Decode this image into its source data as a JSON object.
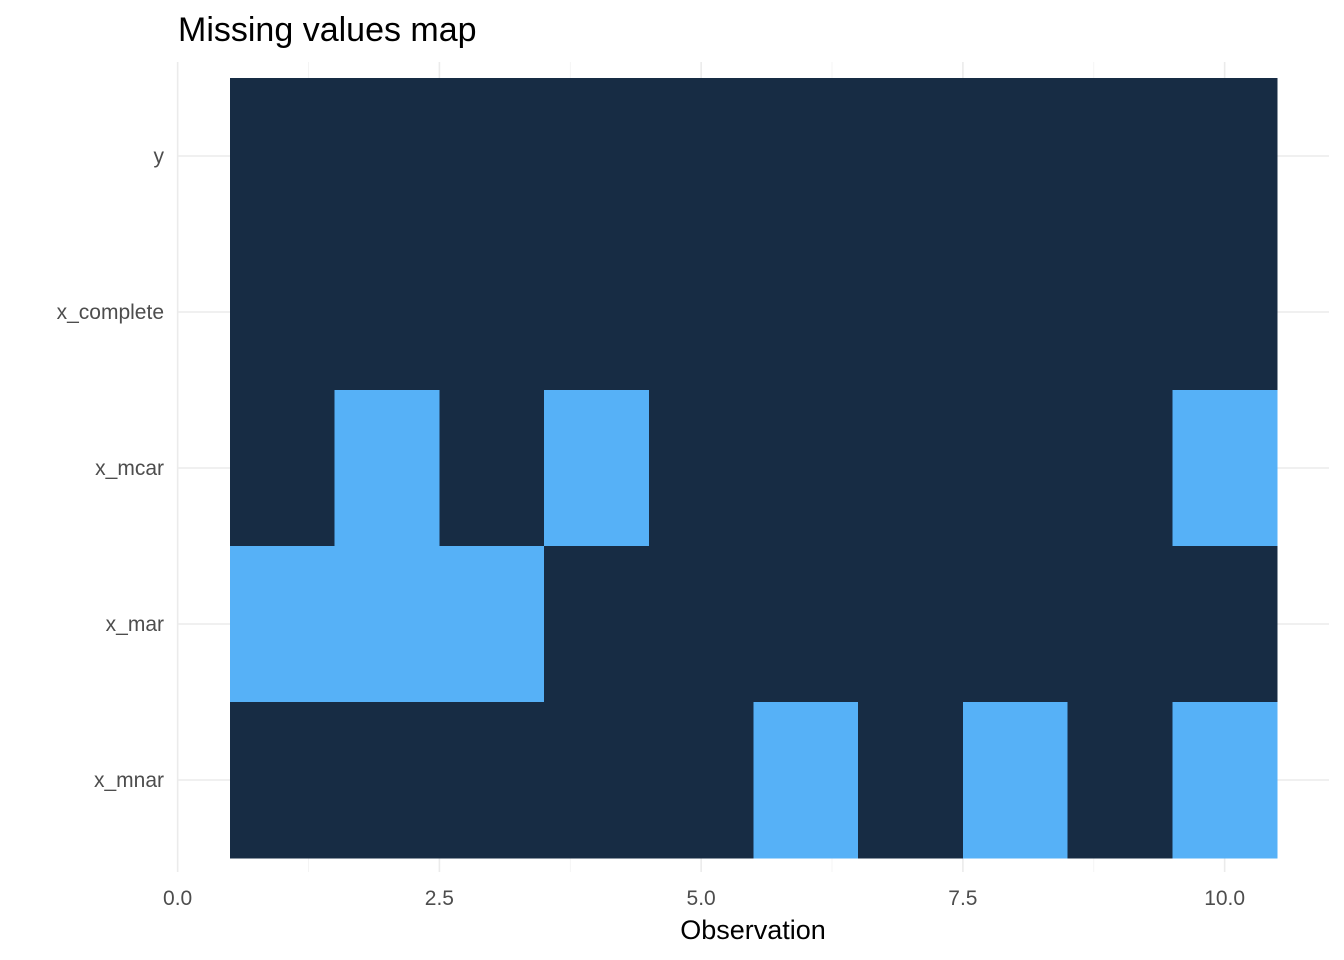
{
  "chart_data": {
    "type": "heatmap",
    "title": "Missing values map",
    "xlabel": "Observation",
    "ylabel": "",
    "xlim": [
      0,
      10.5
    ],
    "x_ticks": [
      0,
      2.5,
      5,
      7.5,
      10
    ],
    "x_tick_labels": [
      "0.0",
      "2.5",
      "5.0",
      "7.5",
      "10.0"
    ],
    "x": [
      1,
      2,
      3,
      4,
      5,
      6,
      7,
      8,
      9,
      10
    ],
    "variables": [
      "y",
      "x_complete",
      "x_mcar",
      "x_mar",
      "x_mnar"
    ],
    "missing": [
      [
        0,
        0,
        0,
        0,
        0,
        0,
        0,
        0,
        0,
        0
      ],
      [
        0,
        0,
        0,
        0,
        0,
        0,
        0,
        0,
        0,
        0
      ],
      [
        0,
        1,
        0,
        1,
        0,
        0,
        0,
        0,
        0,
        1
      ],
      [
        1,
        1,
        1,
        0,
        0,
        0,
        0,
        0,
        0,
        0
      ],
      [
        0,
        0,
        0,
        0,
        0,
        1,
        0,
        1,
        0,
        1
      ]
    ],
    "colors": {
      "present": "#172c44",
      "missing": "#56b1f7"
    },
    "grid": true,
    "legend": "none"
  }
}
